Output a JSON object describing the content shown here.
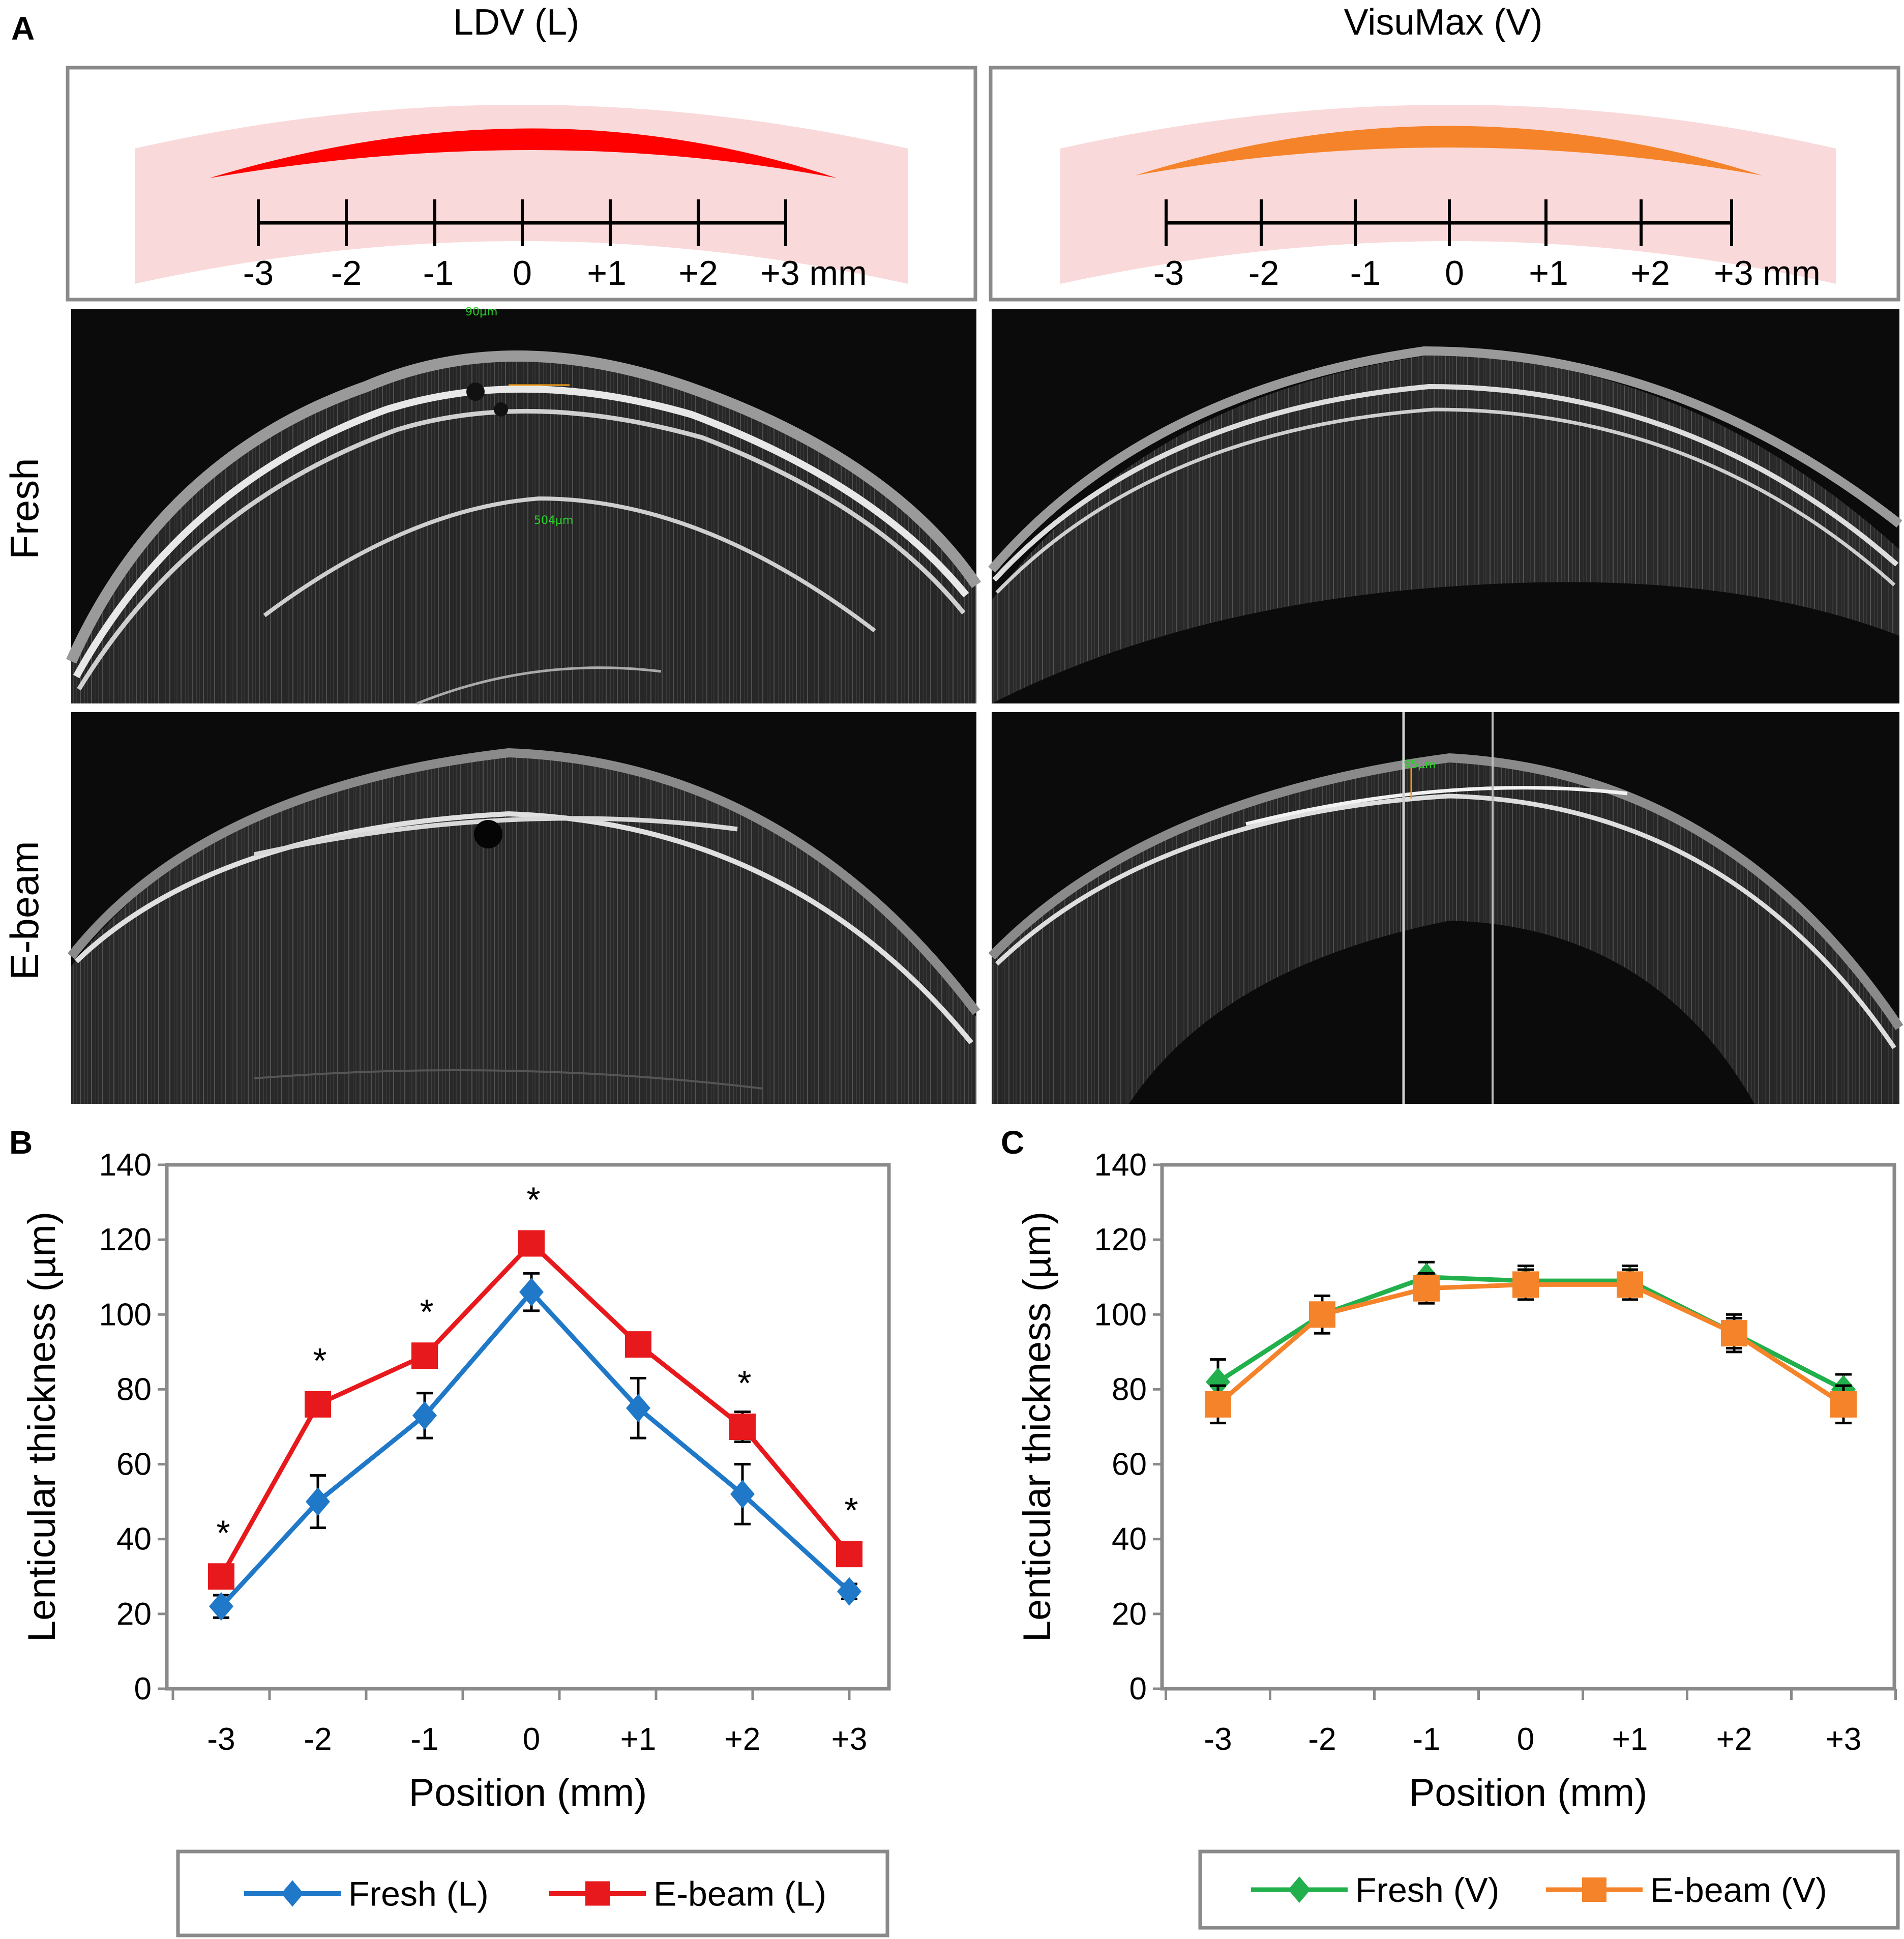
{
  "panel_a": {
    "letter": "A",
    "columns": [
      {
        "title": "LDV (L)",
        "lenticule_color": "#ff0000"
      },
      {
        "title": "VisuMax (V)",
        "lenticule_color": "#f5832a"
      }
    ],
    "scale_labels": [
      "-3",
      "-2",
      "-1",
      "0",
      "+1",
      "+2",
      "+3 mm"
    ],
    "rows": [
      "Fresh",
      "E-beam"
    ],
    "oct_annotations": {
      "ldv_fresh_top": "90µm",
      "ldv_fresh_mid": "504µm",
      "visumax_ebeam_top": "95µm"
    }
  },
  "chart_data": [
    {
      "panel": "B",
      "type": "line",
      "categories": [
        "-3",
        "-2",
        "-1",
        "0",
        "+1",
        "+2",
        "+3"
      ],
      "xlabel": "Position (mm)",
      "ylabel": "Lenticular thickness (µm)",
      "ylim": [
        0,
        140
      ],
      "yticks": [
        "0",
        "20",
        "40",
        "60",
        "80",
        "100",
        "120",
        "140"
      ],
      "series": [
        {
          "name": "Fresh (L)",
          "color": "#1f78c8",
          "marker": "diamond",
          "values": [
            22,
            50,
            73,
            106,
            75,
            52,
            26
          ],
          "errors": [
            3,
            7,
            6,
            5,
            8,
            8,
            2
          ]
        },
        {
          "name": "E-beam (L)",
          "color": "#e8191c",
          "marker": "square",
          "values": [
            30,
            76,
            89,
            119,
            92,
            70,
            36
          ],
          "errors": [
            2,
            2,
            2,
            2,
            2,
            4,
            2
          ]
        }
      ],
      "annotations": {
        "symbol": "*",
        "categories": [
          "-3",
          "-2",
          "-1",
          "0",
          "+2",
          "+3"
        ]
      }
    },
    {
      "panel": "C",
      "type": "line",
      "categories": [
        "-3",
        "-2",
        "-1",
        "0",
        "+1",
        "+2",
        "+3"
      ],
      "xlabel": "Position (mm)",
      "ylabel": "Lenticular thickness (µm)",
      "ylim": [
        0,
        140
      ],
      "yticks": [
        "0",
        "20",
        "40",
        "60",
        "80",
        "100",
        "120",
        "140"
      ],
      "series": [
        {
          "name": "Fresh (V)",
          "color": "#22b04c",
          "marker": "diamond",
          "values": [
            82,
            100,
            110,
            109,
            109,
            95,
            80
          ],
          "errors": [
            6,
            5,
            4,
            4,
            4,
            5,
            4
          ]
        },
        {
          "name": "E-beam (V)",
          "color": "#f5832a",
          "marker": "square",
          "values": [
            76,
            100,
            107,
            108,
            108,
            95,
            76
          ],
          "errors": [
            5,
            5,
            4,
            4,
            4,
            4,
            5
          ]
        }
      ]
    }
  ]
}
